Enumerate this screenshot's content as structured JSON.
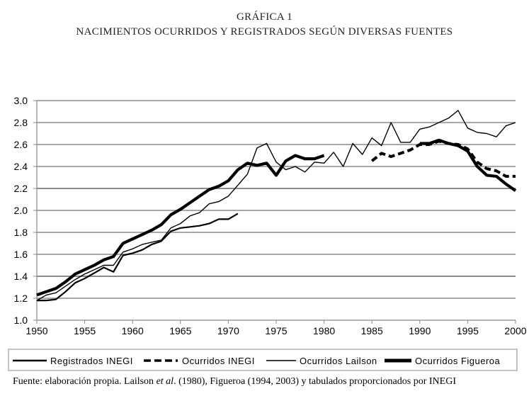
{
  "header": {
    "line1": "GRÁFICA 1",
    "line2": "NACIMIENTOS OCURRIDOS Y REGISTRADOS SEGÚN DIVERSAS FUENTES"
  },
  "source": {
    "prefix": "Fuente: elaboración propia. Lailson ",
    "etal": "et al",
    "suffix": ". (1980), Figueroa (1994, 2003) y tabulados proporcionados por INEGI"
  },
  "chart_data": {
    "type": "line",
    "title": "NACIMIENTOS OCURRIDOS Y REGISTRADOS SEGÚN DIVERSAS FUENTES",
    "xlim": [
      1950,
      2000
    ],
    "ylim": [
      1.0,
      3.0
    ],
    "x_ticks": [
      1950,
      1955,
      1960,
      1965,
      1970,
      1975,
      1980,
      1985,
      1990,
      1995,
      2000
    ],
    "y_ticks": [
      1.0,
      1.2,
      1.4,
      1.6,
      1.8,
      2.0,
      2.2,
      2.4,
      2.6,
      2.8,
      3.0
    ],
    "y_tick_labels": [
      "1.0",
      "1.2",
      "1.4",
      "1.6",
      "1.8",
      "2.0",
      "2.2",
      "2.4",
      "2.6",
      "2.8",
      "3.0"
    ],
    "grid": "horizontal",
    "legend_position": "bottom",
    "series": [
      {
        "name": "Registrados INEGI",
        "style": "medium-solid",
        "x": [
          1950,
          1951,
          1952,
          1953,
          1954,
          1955,
          1956,
          1957,
          1958,
          1959,
          1960,
          1961,
          1962,
          1963,
          1964,
          1965,
          1966,
          1967,
          1968,
          1969,
          1970,
          1971,
          1972,
          1973,
          1974,
          1975,
          1976,
          1977,
          1978,
          1979,
          1980,
          1981,
          1982,
          1983,
          1984,
          1985,
          1986,
          1987,
          1988,
          1989,
          1990,
          1991,
          1992,
          1993,
          1994,
          1995,
          1996,
          1997,
          1998,
          1999,
          2000
        ],
        "values": [
          1.18,
          1.18,
          1.19,
          1.26,
          1.34,
          1.38,
          1.43,
          1.48,
          1.44,
          1.59,
          1.61,
          1.64,
          1.69,
          1.72,
          1.81,
          1.84,
          1.85,
          1.86,
          1.88,
          1.92,
          1.92,
          1.97,
          null,
          null,
          null,
          null,
          null,
          null,
          null,
          null,
          null,
          null,
          null,
          null,
          null,
          null,
          null,
          null,
          null,
          null,
          null,
          null,
          null,
          null,
          null,
          null,
          null,
          null,
          null,
          null,
          null
        ]
      },
      {
        "name": "Ocurridos INEGI",
        "style": "dashed",
        "x": [
          1985,
          1986,
          1987,
          1988,
          1989,
          1990,
          1991,
          1992,
          1993,
          1994,
          1995,
          1996,
          1997,
          1998,
          1999,
          2000
        ],
        "values": [
          2.45,
          2.52,
          2.49,
          2.52,
          2.55,
          2.6,
          2.6,
          2.63,
          2.61,
          2.6,
          2.56,
          2.44,
          2.38,
          2.36,
          2.31,
          2.31
        ]
      },
      {
        "name": "Ocurridos Lailson",
        "style": "thin-solid",
        "x": [
          1950,
          1951,
          1952,
          1953,
          1954,
          1955,
          1956,
          1957,
          1958,
          1959,
          1960,
          1961,
          1962,
          1963,
          1964,
          1965,
          1966,
          1967,
          1968,
          1969,
          1970,
          1971,
          1972,
          1973,
          1974,
          1975,
          1976,
          1977,
          1978,
          1979,
          1980,
          1981,
          1982,
          1983,
          1984,
          1985,
          1986,
          1987,
          1988,
          1989,
          1990,
          1991,
          1992,
          1993,
          1994,
          1995,
          1996,
          1997,
          1998,
          1999,
          2000
        ],
        "values": [
          1.18,
          1.23,
          1.25,
          1.31,
          1.37,
          1.42,
          1.46,
          1.5,
          1.5,
          1.62,
          1.65,
          1.69,
          1.71,
          1.73,
          1.84,
          1.88,
          1.95,
          1.98,
          2.06,
          2.08,
          2.13,
          2.23,
          2.33,
          2.57,
          2.61,
          2.44,
          2.37,
          2.4,
          2.35,
          2.44,
          2.43,
          2.53,
          2.4,
          2.61,
          2.51,
          2.66,
          2.59,
          2.8,
          2.62,
          2.62,
          2.74,
          2.76,
          2.8,
          2.84,
          2.91,
          2.75,
          2.71,
          2.7,
          2.67,
          2.77,
          2.8
        ]
      },
      {
        "name": "Ocurridos Figueroa",
        "style": "thick-solid",
        "x": [
          1950,
          1951,
          1952,
          1953,
          1954,
          1955,
          1956,
          1957,
          1958,
          1959,
          1960,
          1961,
          1962,
          1963,
          1964,
          1965,
          1966,
          1967,
          1968,
          1969,
          1970,
          1971,
          1972,
          1973,
          1974,
          1975,
          1976,
          1977,
          1978,
          1979,
          1980,
          1981,
          1982,
          1983,
          1984,
          1985,
          1986,
          1987,
          1988,
          1989,
          1990,
          1991,
          1992,
          1993,
          1994,
          1995,
          1996,
          1997,
          1998,
          1999,
          2000
        ],
        "values": [
          1.23,
          1.26,
          1.29,
          1.35,
          1.42,
          1.46,
          1.5,
          1.55,
          1.58,
          1.7,
          1.74,
          1.78,
          1.82,
          1.87,
          1.96,
          2.01,
          2.07,
          2.13,
          2.19,
          2.22,
          2.27,
          2.37,
          2.43,
          2.41,
          2.43,
          2.32,
          2.45,
          2.5,
          2.47,
          2.47,
          2.5,
          null,
          null,
          null,
          null,
          null,
          null,
          null,
          null,
          null,
          2.61,
          2.61,
          2.64,
          2.61,
          2.59,
          2.54,
          2.4,
          2.32,
          2.31,
          2.24,
          2.18
        ]
      }
    ]
  },
  "colors": {
    "line": "#000000",
    "grid": "#8c8c8c",
    "axis": "#888888",
    "background": "#ffffff"
  }
}
